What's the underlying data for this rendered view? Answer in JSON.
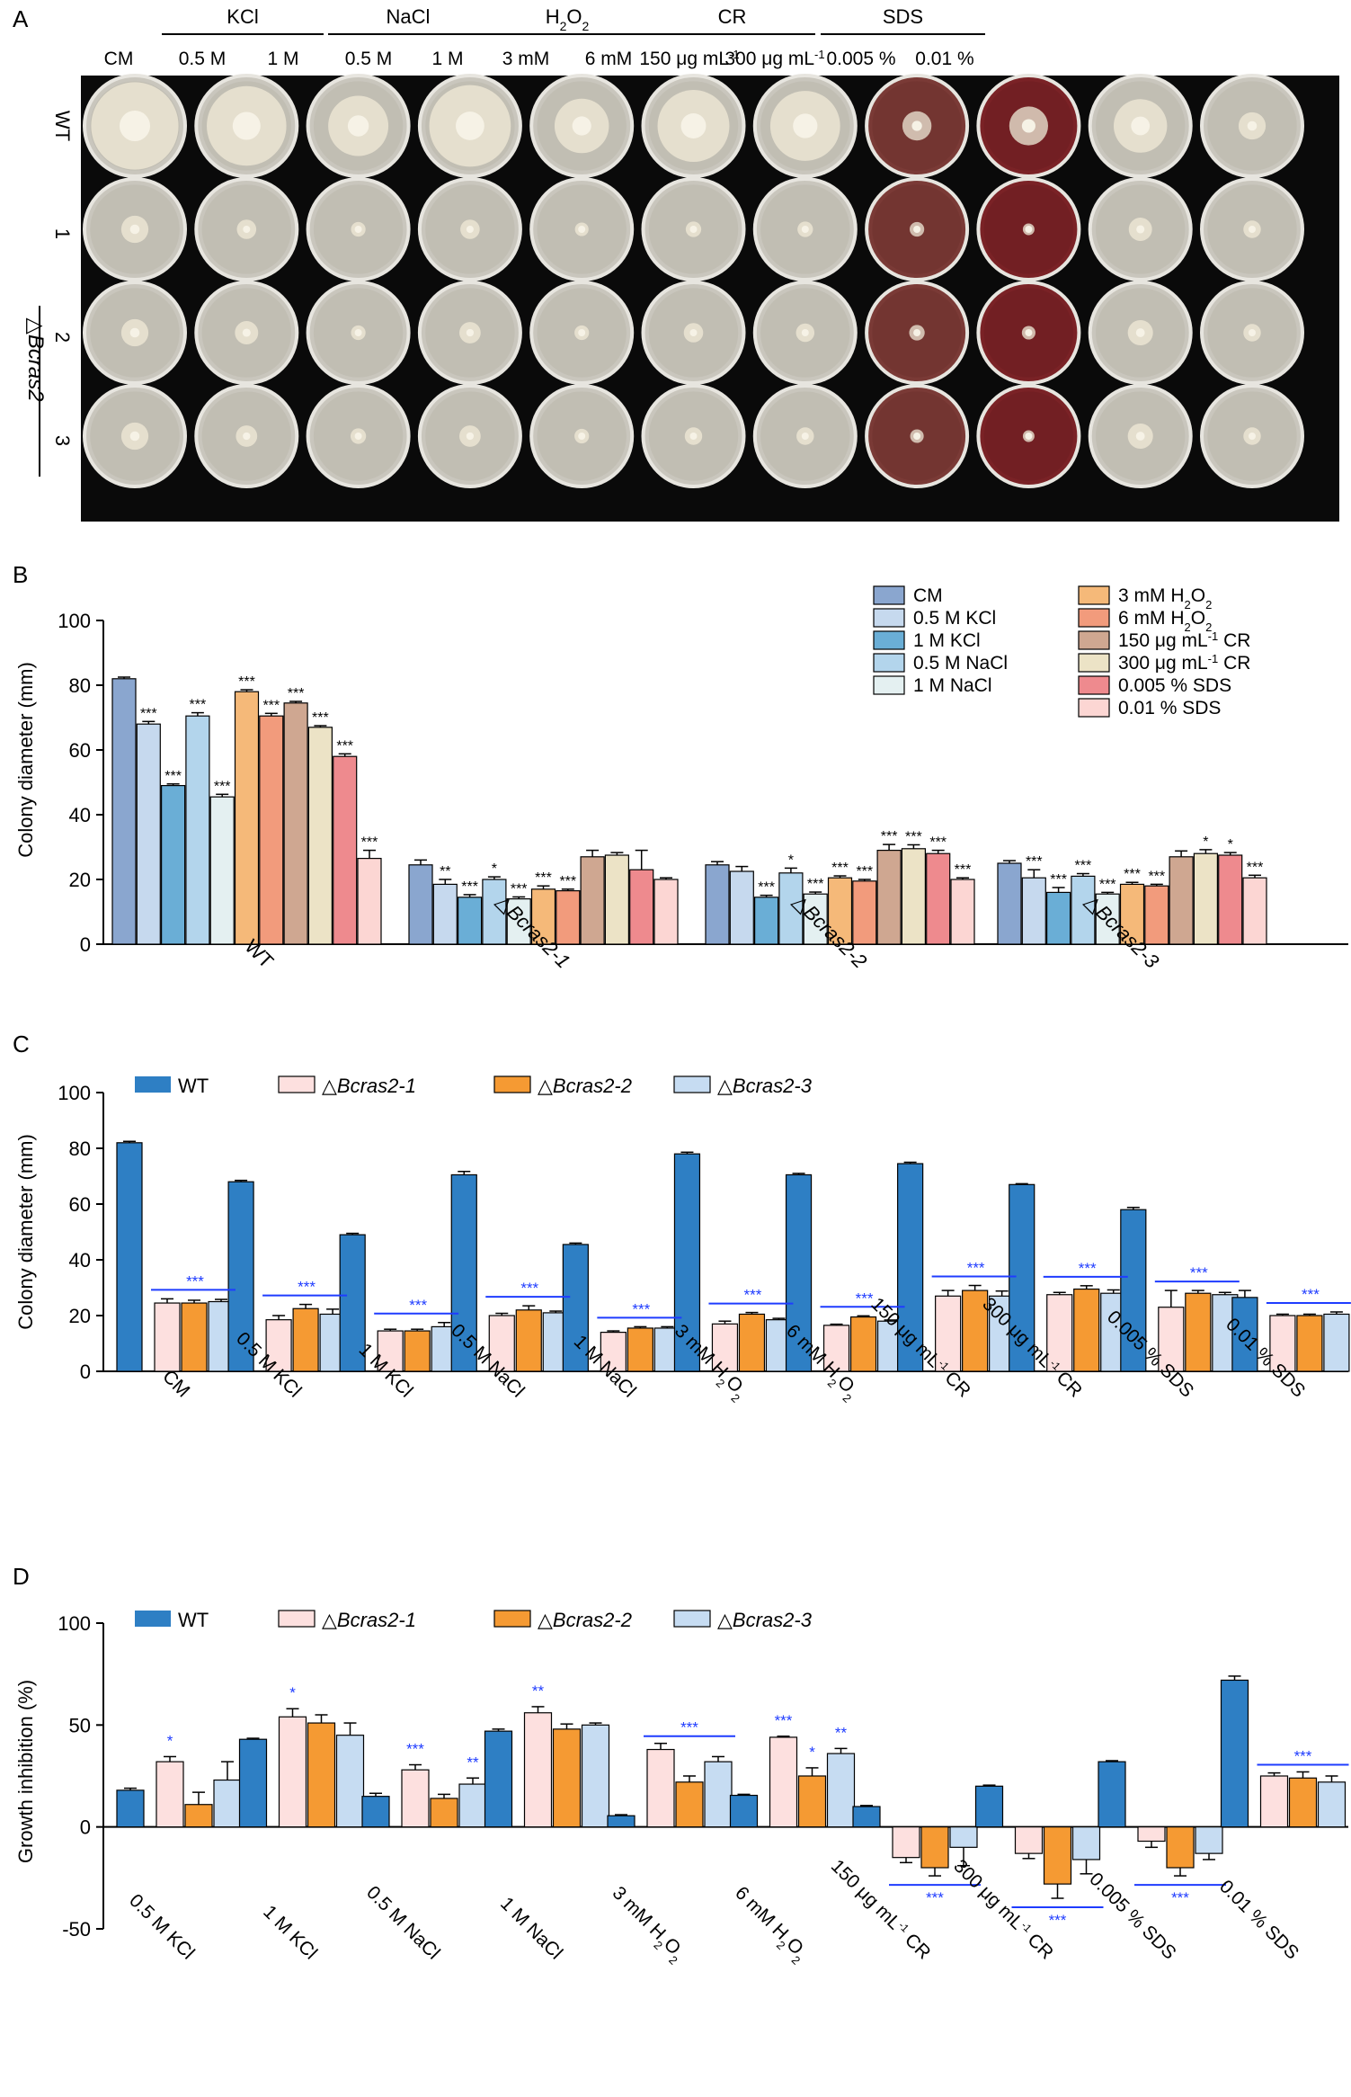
{
  "panel_labels": {
    "a": "A",
    "b": "B",
    "c": "C",
    "d": "D"
  },
  "colors": {
    "CM": "#8aa6cf",
    "0.5 M KCl": "#c6d9ee",
    "1 M KCl": "#6aaed6",
    "0.5 M NaCl": "#b3d5ec",
    "1 M NaCl": "#e4f0f1",
    "3 mM H2O2": "#f5b979",
    "6 mM H2O2": "#f29b7c",
    "150 CR": "#cfa791",
    "300 CR": "#ece3c6",
    "0.005 % SDS": "#ee8a8e",
    "0.01 % SDS": "#fcd6d3",
    "WT": "#2e7fc4",
    "M1": "#fde0df",
    "M2": "#f59a33",
    "M3": "#c6dcf2",
    "sig": "#1f3cff"
  },
  "panel_a": {
    "groups": [
      {
        "name": "KCl",
        "sub": ""
      },
      {
        "name": "NaCl",
        "sub": ""
      },
      {
        "name": "H",
        "sub": "2",
        "mid": "O",
        "sub2": "2"
      },
      {
        "name": "CR",
        "sub": ""
      },
      {
        "name": "SDS",
        "sub": ""
      }
    ],
    "columns": [
      "CM",
      "0.5 M",
      "1 M",
      "0.5 M",
      "1 M",
      "3 mM",
      "6 mM",
      "150 μg mL",
      "300 μg mL",
      "0.005 %",
      "0.01 %"
    ],
    "col_unit_sup": "-1",
    "rows": [
      "WT",
      "1",
      "2",
      "3"
    ],
    "mutant_label": "△Bcras2"
  },
  "panel_b": {
    "ylabel": "Colony diameter (mm)",
    "yticks": [
      "0",
      "20",
      "40",
      "60",
      "80",
      "100"
    ],
    "legend": [
      {
        "key": "CM",
        "text": "CM"
      },
      {
        "key": "0.5 M KCl",
        "text": "0.5 M KCl"
      },
      {
        "key": "1 M KCl",
        "text": "1 M KCl"
      },
      {
        "key": "0.5 M NaCl",
        "text": "0.5 M NaCl"
      },
      {
        "key": "1 M NaCl",
        "text": "1 M NaCl"
      },
      {
        "key": "3 mM H2O2",
        "text": "3 mM H",
        "sub": "2",
        "mid": "O",
        "sub2": "2"
      },
      {
        "key": "6 mM H2O2",
        "text": "6 mM H",
        "sub": "2",
        "mid": "O",
        "sub2": "2"
      },
      {
        "key": "150 CR",
        "text": "150 μg mL",
        "sup": "-1",
        "tail": " CR"
      },
      {
        "key": "300 CR",
        "text": "300 μg mL",
        "sup": "-1",
        "tail": " CR"
      },
      {
        "key": "0.005 % SDS",
        "text": "0.005 % SDS"
      },
      {
        "key": "0.01 % SDS",
        "text": "0.01 % SDS"
      }
    ],
    "group_labels": [
      "WT",
      "△Bcras2-1",
      "△Bcras2-2",
      "△Bcras2-3"
    ],
    "sig_marks": [
      [
        "",
        "***",
        "***",
        "***",
        "***",
        "***",
        "***",
        "***",
        "***",
        "***",
        "***"
      ],
      [
        "",
        "**",
        "***",
        "*",
        "***",
        "***",
        "***",
        "",
        "",
        "",
        ""
      ],
      [
        "",
        "",
        "***",
        "*",
        "***",
        "***",
        "***",
        "***",
        "***",
        "***",
        "***"
      ],
      [
        "",
        "***",
        "***",
        "***",
        "***",
        "***",
        "***",
        "",
        "*",
        "*",
        "***"
      ]
    ]
  },
  "panel_c": {
    "ylabel": "Colony diameter (mm)",
    "yticks": [
      "0",
      "20",
      "40",
      "60",
      "80",
      "100"
    ],
    "legend": [
      {
        "key": "WT",
        "text": "WT"
      },
      {
        "key": "M1",
        "text": "△Bcras2-1"
      },
      {
        "key": "M2",
        "text": "△Bcras2-2"
      },
      {
        "key": "M3",
        "text": "△Bcras2-3"
      }
    ],
    "categories": [
      "CM",
      "0.5 M KCl",
      "1 M KCl",
      "0.5 M NaCl",
      "1 M NaCl",
      "3 mM H2O2",
      "6 mM H2O2",
      "150 μg mL-1 CR",
      "300 μg mL-1 CR",
      "0.005 % SDS",
      "0.01 % SDS"
    ],
    "sig": "***"
  },
  "panel_d": {
    "ylabel": "Growth inhibition (%)",
    "yticks": [
      "-50",
      "0",
      "50",
      "100"
    ],
    "legend": [
      {
        "key": "WT",
        "text": "WT"
      },
      {
        "key": "M1",
        "text": "△Bcras2-1"
      },
      {
        "key": "M2",
        "text": "△Bcras2-2"
      },
      {
        "key": "M3",
        "text": "△Bcras2-3"
      }
    ],
    "categories": [
      "0.5 M KCl",
      "1 M KCl",
      "0.5 M NaCl",
      "1 M NaCl",
      "3 mM H2O2",
      "6 mM H2O2",
      "150 μg mL-1 CR",
      "300 μg mL-1 CR",
      "0.005 % SDS",
      "0.01 % SDS"
    ],
    "sig": [
      {
        "cat": 0,
        "text": "*",
        "bars": [
          1
        ]
      },
      {
        "cat": 1,
        "text": "*",
        "bars": [
          1
        ]
      },
      {
        "cat": 2,
        "text": "***",
        "bars": [
          1
        ]
      },
      {
        "cat": 2,
        "text": "**",
        "bars": [
          3
        ]
      },
      {
        "cat": 3,
        "text": "**",
        "bars": [
          1
        ]
      },
      {
        "cat": 4,
        "text": "***",
        "bars": [
          1,
          2,
          3
        ]
      },
      {
        "cat": 5,
        "text": "***",
        "bars": [
          1
        ]
      },
      {
        "cat": 5,
        "text": "*",
        "bars": [
          2
        ]
      },
      {
        "cat": 5,
        "text": "**",
        "bars": [
          3
        ]
      },
      {
        "cat": 6,
        "text": "***",
        "bars": [
          1,
          2,
          3
        ],
        "below": true
      },
      {
        "cat": 7,
        "text": "***",
        "bars": [
          1,
          2,
          3
        ],
        "below": true
      },
      {
        "cat": 8,
        "text": "***",
        "bars": [
          1,
          2,
          3
        ],
        "below": true
      },
      {
        "cat": 9,
        "text": "***",
        "bars": [
          1,
          2,
          3
        ]
      }
    ]
  },
  "chart_data": [
    {
      "panel": "B",
      "type": "bar",
      "ylabel": "Colony diameter (mm)",
      "ylim": [
        0,
        100
      ],
      "categories": [
        "WT",
        "△Bcras2-1",
        "△Bcras2-2",
        "△Bcras2-3"
      ],
      "series": [
        {
          "name": "CM",
          "values": [
            82,
            24.5,
            24.5,
            25
          ],
          "errors": [
            0.5,
            1.5,
            1,
            0.8
          ]
        },
        {
          "name": "0.5 M KCl",
          "values": [
            68,
            18.5,
            22.5,
            20.5
          ],
          "errors": [
            0.8,
            1.5,
            1.5,
            2.5
          ]
        },
        {
          "name": "1 M KCl",
          "values": [
            49,
            14.5,
            14.5,
            16
          ],
          "errors": [
            0.5,
            0.8,
            0.6,
            1.5
          ]
        },
        {
          "name": "0.5 M NaCl",
          "values": [
            70.5,
            20,
            22,
            21
          ],
          "errors": [
            1,
            0.8,
            1.5,
            0.8
          ]
        },
        {
          "name": "1 M NaCl",
          "values": [
            45.5,
            14,
            15.5,
            15.5
          ],
          "errors": [
            0.8,
            0.6,
            0.6,
            0.5
          ]
        },
        {
          "name": "3 mM H2O2",
          "values": [
            78,
            17,
            20.5,
            18.5
          ],
          "errors": [
            0.6,
            1,
            0.6,
            0.6
          ]
        },
        {
          "name": "6 mM H2O2",
          "values": [
            70.5,
            16.5,
            19.5,
            18
          ],
          "errors": [
            0.8,
            0.5,
            0.5,
            0.5
          ]
        },
        {
          "name": "150 μg mL-1 CR",
          "values": [
            74.5,
            27,
            29,
            27
          ],
          "errors": [
            0.5,
            2,
            1.8,
            1.8
          ]
        },
        {
          "name": "300 μg mL-1 CR",
          "values": [
            67,
            27.5,
            29.5,
            28
          ],
          "errors": [
            0.5,
            0.8,
            1.2,
            1.2
          ]
        },
        {
          "name": "0.005 % SDS",
          "values": [
            58,
            23,
            28,
            27.5
          ],
          "errors": [
            0.8,
            6,
            1,
            0.8
          ]
        },
        {
          "name": "0.01 % SDS",
          "values": [
            26.5,
            20,
            20,
            20.5
          ],
          "errors": [
            2.5,
            0.5,
            0.5,
            0.8
          ]
        }
      ]
    },
    {
      "panel": "C",
      "type": "bar",
      "ylabel": "Colony diameter (mm)",
      "ylim": [
        0,
        100
      ],
      "categories": [
        "CM",
        "0.5 M KCl",
        "1 M KCl",
        "0.5 M NaCl",
        "1 M NaCl",
        "3 mM H2O2",
        "6 mM H2O2",
        "150 μg mL-1 CR",
        "300 μg mL-1 CR",
        "0.005 % SDS",
        "0.01 % SDS"
      ],
      "series": [
        {
          "name": "WT",
          "values": [
            82,
            68,
            49,
            70.5,
            45.5,
            78,
            70.5,
            74.5,
            67,
            58,
            26.5
          ],
          "errors": [
            0.5,
            0.5,
            0.5,
            1.2,
            0.5,
            0.6,
            0.5,
            0.5,
            0.3,
            0.8,
            2.5
          ]
        },
        {
          "name": "△Bcras2-1",
          "values": [
            24.5,
            18.5,
            14.5,
            20,
            14,
            17,
            16.5,
            27,
            27.5,
            23,
            20
          ],
          "errors": [
            1.5,
            1.5,
            0.6,
            0.8,
            0.5,
            1,
            0.4,
            2,
            0.8,
            6,
            0.5
          ]
        },
        {
          "name": "△Bcras2-2",
          "values": [
            24.5,
            22.5,
            14.5,
            22,
            15.5,
            20.5,
            19.5,
            29,
            29.5,
            28,
            20
          ],
          "errors": [
            1,
            1.5,
            0.6,
            1.5,
            0.5,
            0.6,
            0.4,
            1.8,
            1.2,
            1,
            0.5
          ]
        },
        {
          "name": "△Bcras2-3",
          "values": [
            25,
            20.5,
            16,
            21,
            15.5,
            18.5,
            18,
            27,
            28,
            27.5,
            20.5
          ],
          "errors": [
            0.8,
            1.8,
            1.5,
            0.6,
            0.5,
            0.5,
            0.4,
            1.8,
            1.2,
            0.8,
            0.8
          ]
        }
      ]
    },
    {
      "panel": "D",
      "type": "bar",
      "ylabel": "Growth inhibition (%)",
      "ylim": [
        -50,
        100
      ],
      "categories": [
        "0.5 M KCl",
        "1 M KCl",
        "0.5 M NaCl",
        "1 M NaCl",
        "3 mM H2O2",
        "6 mM H2O2",
        "150 μg mL-1 CR",
        "300 μg mL-1 CR",
        "0.005 % SDS",
        "0.01 % SDS"
      ],
      "series": [
        {
          "name": "WT",
          "values": [
            18,
            43,
            15,
            47,
            5.5,
            15.5,
            10,
            20,
            32,
            72
          ],
          "errors": [
            1,
            0.5,
            1.5,
            1,
            0.5,
            0.5,
            0.5,
            0.5,
            0.5,
            2
          ]
        },
        {
          "name": "△Bcras2-1",
          "values": [
            32,
            54,
            28,
            56,
            38,
            44,
            -15,
            -13,
            -7,
            25
          ],
          "errors": [
            2.5,
            4,
            2.5,
            3,
            3,
            0.5,
            2.5,
            2.5,
            3,
            1.5
          ]
        },
        {
          "name": "△Bcras2-2",
          "values": [
            11,
            51,
            14,
            48,
            22,
            25,
            -20,
            -28,
            -20,
            24
          ],
          "errors": [
            6,
            4,
            2,
            2.5,
            3,
            4,
            4,
            7,
            4,
            3
          ]
        },
        {
          "name": "△Bcras2-3",
          "values": [
            23,
            45,
            21,
            50,
            32,
            36,
            -10,
            -16,
            -13,
            22
          ],
          "errors": [
            9,
            6,
            3,
            1,
            2.5,
            2.5,
            9,
            7,
            3,
            3
          ]
        }
      ]
    }
  ]
}
